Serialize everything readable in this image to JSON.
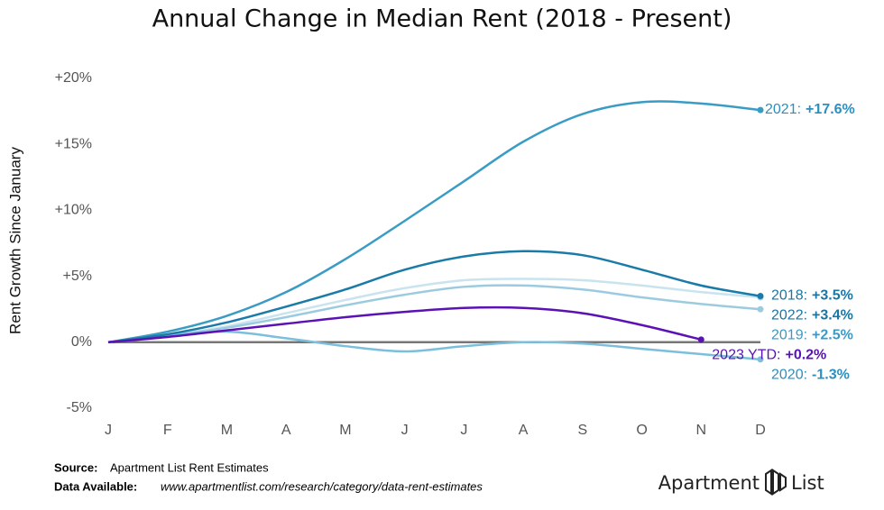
{
  "chart_data": {
    "type": "line",
    "title": "Annual Change in Median Rent (2018 - Present)",
    "y_label": "Rent Growth Since January",
    "categories": [
      "J",
      "F",
      "M",
      "A",
      "M",
      "J",
      "J",
      "A",
      "S",
      "O",
      "N",
      "D"
    ],
    "ylim": [
      -5,
      20
    ],
    "yticks": [
      {
        "value": -5,
        "label": "-5%"
      },
      {
        "value": 0,
        "label": "0%"
      },
      {
        "value": 5,
        "label": "+5%"
      },
      {
        "value": 10,
        "label": "+10%"
      },
      {
        "value": 15,
        "label": "+15%"
      },
      {
        "value": 20,
        "label": "+20%"
      }
    ],
    "zero_line": true,
    "series": [
      {
        "name": "2022:",
        "color": "#c9e3ef",
        "label_color": "#1876a6",
        "end_label": "+3.4%",
        "values": [
          0,
          0.5,
          1.2,
          2.2,
          3.2,
          4.1,
          4.7,
          4.8,
          4.7,
          4.3,
          3.8,
          3.4
        ]
      },
      {
        "name": "2019:",
        "color": "#9ccbe0",
        "label_color": "#3b9ac4",
        "end_label": "+2.5%",
        "values": [
          0,
          0.5,
          1.1,
          1.9,
          2.8,
          3.6,
          4.2,
          4.3,
          4.0,
          3.4,
          2.9,
          2.5
        ]
      },
      {
        "name": "2020:",
        "color": "#7bbfdc",
        "label_color": "#2b8fbf",
        "end_label": "-1.3%",
        "values": [
          0,
          0.5,
          0.8,
          0.3,
          -0.3,
          -0.7,
          -0.3,
          0,
          -0.1,
          -0.5,
          -0.9,
          -1.3
        ]
      },
      {
        "name": "2021:",
        "color": "#3a9cc4",
        "label_color": "#2b8fbf",
        "end_label": "+17.6%",
        "values": [
          0,
          0.8,
          2.0,
          3.8,
          6.3,
          9.2,
          12.2,
          15.2,
          17.3,
          18.2,
          18.1,
          17.6
        ]
      },
      {
        "name": "2018:",
        "color": "#1a7aa8",
        "label_color": "#1876a6",
        "end_label": "+3.5%",
        "values": [
          0,
          0.6,
          1.5,
          2.7,
          4.0,
          5.5,
          6.5,
          6.9,
          6.6,
          5.5,
          4.3,
          3.5
        ]
      },
      {
        "name": "2023 YTD:",
        "color": "#5b12b4",
        "label_color": "#5b12b4",
        "end_label": "+0.2%",
        "values": [
          0,
          0.4,
          0.9,
          1.4,
          1.9,
          2.3,
          2.6,
          2.6,
          2.2,
          1.3,
          0.2,
          null
        ]
      }
    ],
    "source_label": "Source:",
    "source": "Apartment List Rent Estimates",
    "data_label": "Data Available:",
    "data_url": "www.apartmentlist.com/research/category/data-rent-estimates",
    "logo_left": "Apartment",
    "logo_right": "List"
  }
}
